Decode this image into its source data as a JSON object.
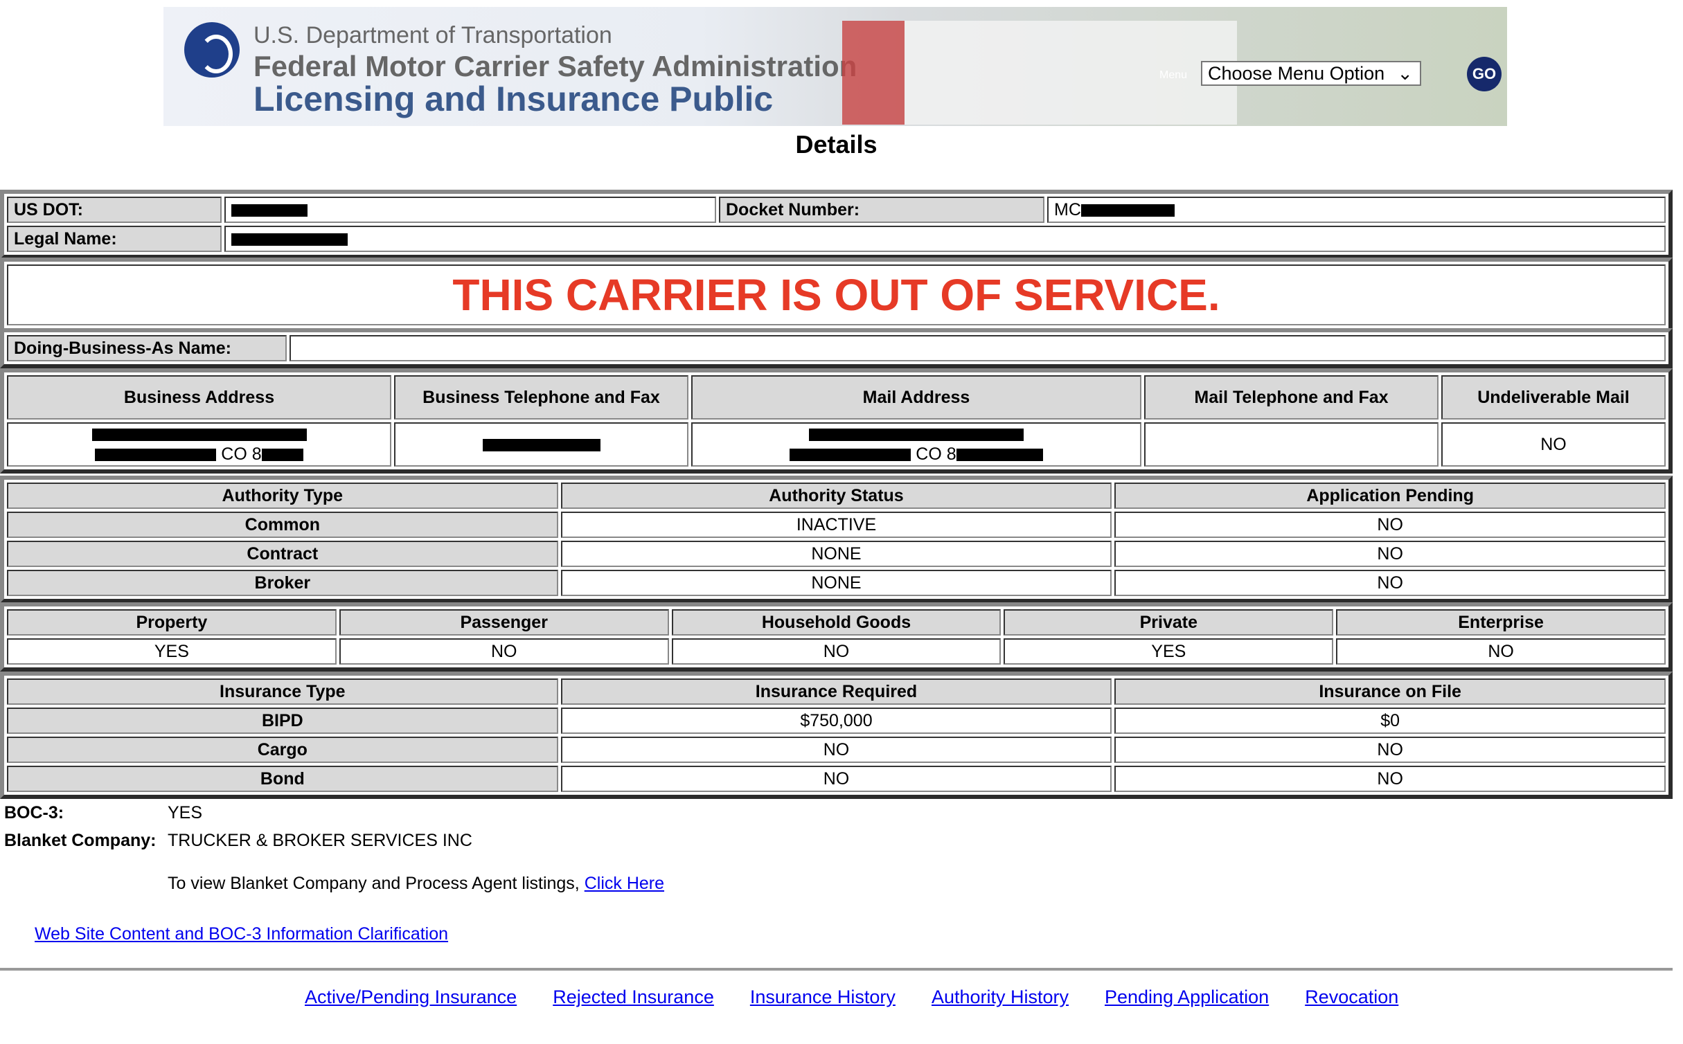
{
  "header": {
    "dept": "U.S. Department of Transportation",
    "agency": "Federal Motor Carrier Safety Administration",
    "app": "Licensing and Insurance Public",
    "menu_label": "Menu",
    "menu_value": "Choose Menu Option",
    "go": "GO"
  },
  "title": "Details",
  "carrier": {
    "usdot_label": "US DOT:",
    "docket_label": "Docket Number:",
    "docket_prefix": "MC",
    "legal_label": "Legal Name:"
  },
  "banner": "THIS CARRIER IS OUT OF SERVICE.",
  "dba": {
    "label": "Doing-Business-As Name:",
    "value": ""
  },
  "address": {
    "headers": [
      "Business Address",
      "Business Telephone and Fax",
      "Mail Address",
      "Mail Telephone and Fax",
      "Undeliverable Mail"
    ],
    "business_state": "CO 8",
    "mail_state": "CO 8",
    "undeliverable": "NO"
  },
  "authority": {
    "headers": [
      "Authority Type",
      "Authority Status",
      "Application Pending"
    ],
    "rows": [
      [
        "Common",
        "INACTIVE",
        "NO"
      ],
      [
        "Contract",
        "NONE",
        "NO"
      ],
      [
        "Broker",
        "NONE",
        "NO"
      ]
    ]
  },
  "cargo": {
    "headers": [
      "Property",
      "Passenger",
      "Household Goods",
      "Private",
      "Enterprise"
    ],
    "values": [
      "YES",
      "NO",
      "NO",
      "YES",
      "NO"
    ]
  },
  "insurance": {
    "headers": [
      "Insurance Type",
      "Insurance Required",
      "Insurance on File"
    ],
    "rows": [
      [
        "BIPD",
        "$750,000",
        "$0"
      ],
      [
        "Cargo",
        "NO",
        "NO"
      ],
      [
        "Bond",
        "NO",
        "NO"
      ]
    ]
  },
  "boc3": {
    "label": "BOC-3:",
    "value": "YES",
    "blanket_label": "Blanket Company:",
    "blanket_value": "TRUCKER & BROKER SERVICES INC",
    "view_text": "To view Blanket Company and Process Agent listings,",
    "click_here": "Click Here",
    "clarification": "Web Site Content and BOC-3 Information Clarification"
  },
  "footer": [
    "Active/Pending Insurance",
    "Rejected Insurance",
    "Insurance History",
    "Authority History",
    "Pending Application",
    "Revocation"
  ]
}
